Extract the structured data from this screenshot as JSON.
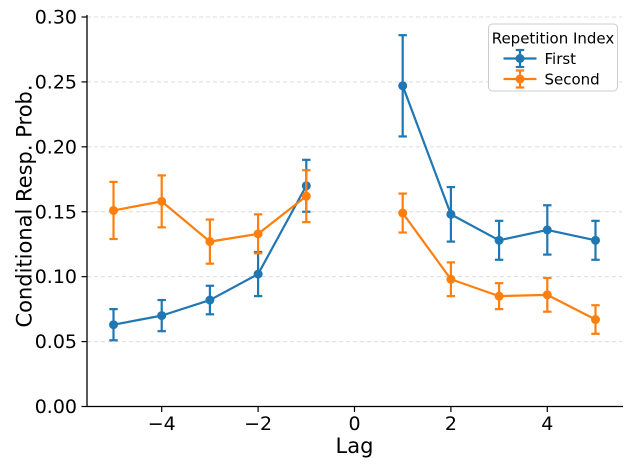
{
  "chart_data": {
    "type": "line",
    "title": "",
    "xlabel": "Lag",
    "ylabel": "Conditional Resp. Prob.",
    "xlim": [
      -5.55,
      5.55
    ],
    "ylim": [
      0.0,
      0.3
    ],
    "xticks": [
      -4,
      -2,
      0,
      2,
      4
    ],
    "xtick_labels": [
      "−4",
      "−2",
      "0",
      "2",
      "4"
    ],
    "yticks": [
      0.0,
      0.05,
      0.1,
      0.15,
      0.2,
      0.25,
      0.3
    ],
    "ytick_labels": [
      "0.00",
      "0.05",
      "0.10",
      "0.15",
      "0.20",
      "0.25",
      "0.30"
    ],
    "grid": {
      "axis": "y",
      "style": "dashed",
      "color": "#dcdcdc"
    },
    "legend": {
      "title": "Repetition Index",
      "location": "upper-right"
    },
    "gap_between": [
      -1,
      1
    ],
    "series": [
      {
        "name": "First",
        "color": "#1f77b4",
        "x": [
          -5,
          -4,
          -3,
          -2,
          -1,
          1,
          2,
          3,
          4,
          5
        ],
        "y": [
          0.063,
          0.07,
          0.082,
          0.102,
          0.17,
          0.247,
          0.148,
          0.128,
          0.136,
          0.128
        ],
        "yerr": [
          0.012,
          0.012,
          0.011,
          0.017,
          0.02,
          0.039,
          0.021,
          0.015,
          0.019,
          0.015
        ]
      },
      {
        "name": "Second",
        "color": "#ff7f0e",
        "x": [
          -5,
          -4,
          -3,
          -2,
          -1,
          1,
          2,
          3,
          4,
          5
        ],
        "y": [
          0.151,
          0.158,
          0.127,
          0.133,
          0.162,
          0.149,
          0.098,
          0.085,
          0.086,
          0.067
        ],
        "yerr": [
          0.022,
          0.02,
          0.017,
          0.015,
          0.02,
          0.015,
          0.013,
          0.01,
          0.013,
          0.011
        ]
      }
    ]
  }
}
